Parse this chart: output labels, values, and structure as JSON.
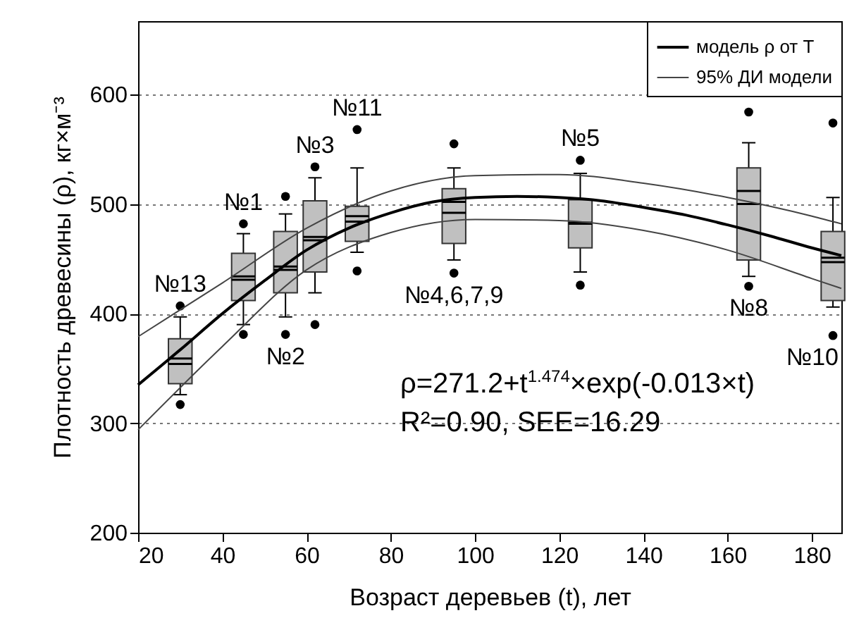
{
  "chart_data": {
    "type": "box",
    "xlabel": "Возраст деревьев (t), лет",
    "ylabel": "Плотность древесины (ρ), кг×м⁻³",
    "xlim": [
      20,
      187
    ],
    "xticks": [
      20,
      40,
      60,
      80,
      100,
      120,
      140,
      160,
      180
    ],
    "ylim": [
      200,
      667
    ],
    "yticks": [
      200,
      300,
      400,
      500,
      600
    ],
    "grid": "y",
    "legend": "top right",
    "series": [
      {
        "type": "box",
        "color": "#c0c0c0",
        "x": [
          30,
          45,
          55,
          62,
          72,
          95,
          125,
          165,
          185
        ],
        "boxes": [
          {
            "low": 326,
            "q1": 336,
            "median": 359,
            "q3": 377,
            "high": 397,
            "mean": 354,
            "outliers": [
              317,
              407
            ]
          },
          {
            "low": 390,
            "q1": 412,
            "median": 434,
            "q3": 455,
            "high": 473,
            "mean": 431,
            "outliers": [
              381,
              482
            ]
          },
          {
            "low": 397,
            "q1": 419,
            "median": 443,
            "q3": 475,
            "high": 491,
            "mean": 440,
            "outliers": [
              381,
              507
            ]
          },
          {
            "low": 419,
            "q1": 438,
            "median": 470,
            "q3": 503,
            "high": 524,
            "mean": 467,
            "outliers": [
              390,
              534
            ]
          },
          {
            "low": 456,
            "q1": 466,
            "median": 484,
            "q3": 498,
            "high": 533,
            "mean": 489,
            "outliers": [
              439,
              568
            ]
          },
          {
            "low": 449,
            "q1": 464,
            "median": 492,
            "q3": 514,
            "high": 533,
            "mean": 502,
            "outliers": [
              437,
              555
            ]
          },
          {
            "low": 438,
            "q1": 460,
            "median": 483,
            "q3": 504,
            "high": 528,
            "mean": 482,
            "outliers": [
              426,
              540
            ]
          },
          {
            "low": 434,
            "q1": 449,
            "median": 500,
            "q3": 533,
            "high": 556,
            "mean": 512,
            "outliers": [
              425,
              584
            ]
          },
          {
            "low": 406,
            "q1": 412,
            "median": 447,
            "q3": 475,
            "high": 506,
            "mean": 451,
            "outliers": [
              380,
              574
            ]
          }
        ]
      },
      {
        "type": "line",
        "name": "модель ρ от Т",
        "color": "#000000",
        "x": [
          20,
          30,
          40,
          50,
          60,
          70,
          80,
          90,
          100,
          110,
          120,
          130,
          140,
          150,
          160,
          170,
          180,
          187
        ],
        "values": [
          335,
          367,
          400,
          430,
          458,
          478,
          492,
          502,
          506,
          507,
          506,
          503,
          497,
          490,
          481,
          471,
          460,
          453
        ]
      },
      {
        "type": "line",
        "name": "95% ДИ модели",
        "color": "#444444",
        "x": [
          20,
          40,
          60,
          80,
          100,
          120,
          140,
          160,
          180,
          187
        ],
        "values": [
          379,
          428,
          478,
          512,
          526,
          527,
          519,
          506,
          489,
          482
        ]
      },
      {
        "type": "line",
        "color": "#444444",
        "x": [
          20,
          40,
          60,
          80,
          100,
          120,
          140,
          160,
          180,
          187
        ],
        "values": [
          294,
          370,
          440,
          474,
          486,
          485,
          476,
          458,
          432,
          423
        ]
      }
    ],
    "annotations": [
      "№13",
      "№1",
      "№2",
      "№3",
      "№11",
      "№4,6,7,9",
      "№5",
      "№8",
      "№10",
      "ρ=271.2+t$^{1.474}$×exp(-0.013×t)",
      "R²=0.90, SEE=16.29"
    ]
  }
}
